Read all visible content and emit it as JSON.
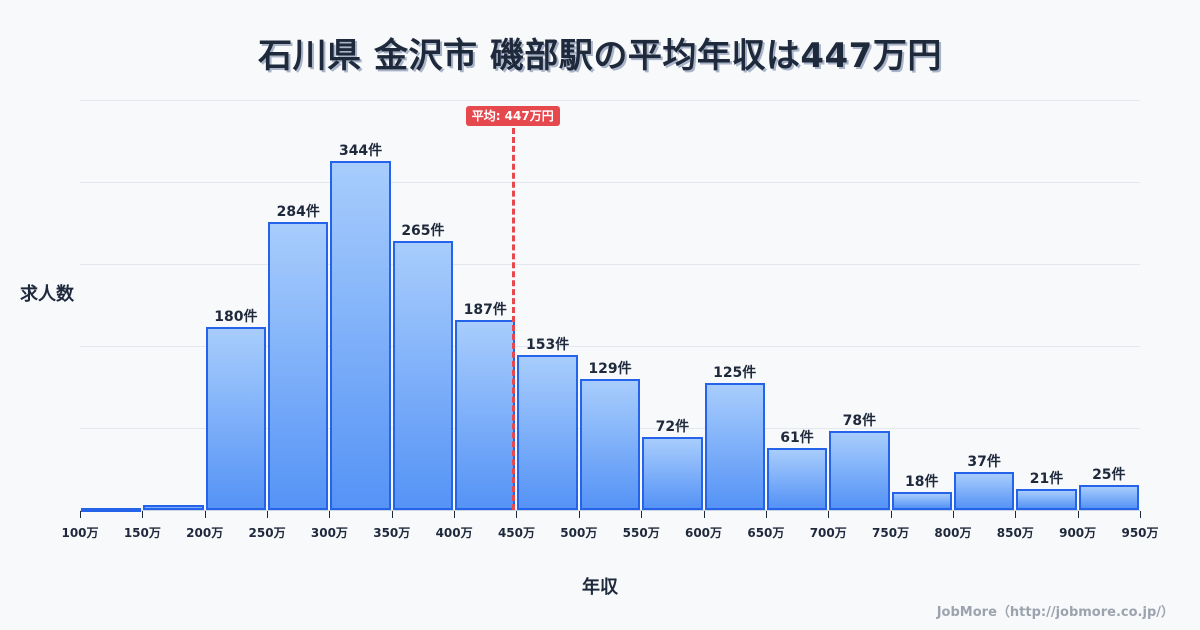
{
  "title": "石川県 金沢市 磯部駅の平均年収は447万円",
  "credit": "JobMore（http://jobmore.co.jp/）",
  "colors": {
    "bar_fill_top": "#a8cdfc",
    "bar_fill_bottom": "#5593f6",
    "bar_border": "#2563eb",
    "average_line": "#e5484d",
    "background": "#f8f9fb"
  },
  "chart_data": {
    "type": "bar",
    "title": "石川県 金沢市 磯部駅の平均年収は447万円",
    "xlabel": "年収",
    "ylabel": "求人数",
    "x_ticks": [
      "100万",
      "150万",
      "200万",
      "250万",
      "300万",
      "350万",
      "400万",
      "450万",
      "500万",
      "550万",
      "600万",
      "650万",
      "700万",
      "750万",
      "800万",
      "850万",
      "900万",
      "950万"
    ],
    "categories": [
      "100-150万",
      "150-200万",
      "200-250万",
      "250-300万",
      "300-350万",
      "350-400万",
      "400-450万",
      "450-500万",
      "500-550万",
      "550-600万",
      "600-650万",
      "650-700万",
      "700-750万",
      "750-800万",
      "800-850万",
      "850-900万",
      "900-950万"
    ],
    "values": [
      2,
      5,
      180,
      284,
      344,
      265,
      187,
      153,
      129,
      72,
      125,
      61,
      78,
      18,
      37,
      21,
      25
    ],
    "labels": [
      "",
      "",
      "180件",
      "284件",
      "344件",
      "265件",
      "187件",
      "153件",
      "129件",
      "72件",
      "125件",
      "61件",
      "78件",
      "18件",
      "37件",
      "21件",
      "25件"
    ],
    "ylim": [
      0,
      404
    ],
    "grid": true,
    "average": {
      "value": 447,
      "label": "平均: 447万円"
    }
  }
}
